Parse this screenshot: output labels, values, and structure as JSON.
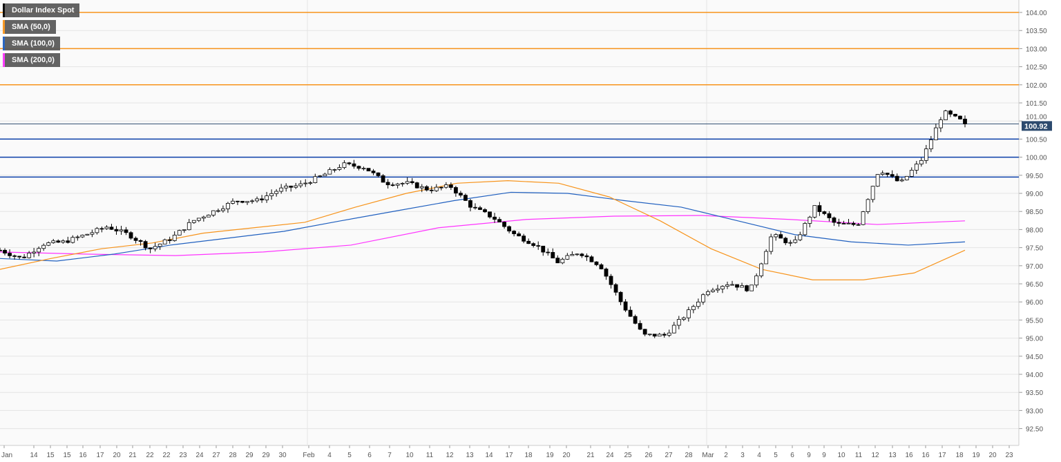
{
  "chart_data": {
    "type": "candlestick",
    "title": "Dollar Index Spot",
    "ylim": [
      92.25,
      104.25
    ],
    "yticks": [
      "104.00",
      "103.50",
      "103.00",
      "102.50",
      "102.00",
      "101.50",
      "101.00",
      "100.50",
      "100.00",
      "99.50",
      "99.00",
      "98.50",
      "98.00",
      "97.50",
      "97.00",
      "96.50",
      "96.00",
      "95.50",
      "95.00",
      "94.50",
      "94.00",
      "93.50",
      "93.00",
      "92.50"
    ],
    "xticks": [
      "Jan",
      "14",
      "15",
      "15",
      "16",
      "17",
      "20",
      "21",
      "22",
      "22",
      "23",
      "24",
      "27",
      "28",
      "29",
      "29",
      "30",
      "Feb",
      "4",
      "5",
      "6",
      "7",
      "10",
      "11",
      "12",
      "13",
      "14",
      "17",
      "18",
      "19",
      "20",
      "21",
      "24",
      "25",
      "26",
      "27",
      "28",
      "Mar",
      "2",
      "3",
      "4",
      "5",
      "6",
      "9",
      "9",
      "10",
      "11",
      "12",
      "13",
      "16",
      "16",
      "17",
      "18",
      "19",
      "20",
      "23"
    ],
    "current_price": "100.92",
    "grid": true,
    "legend_placement": "top-left",
    "legend": [
      {
        "label": "Dollar Index Spot",
        "color": "#000000"
      },
      {
        "label": "SMA (50,0)",
        "color": "#f7931a"
      },
      {
        "label": "SMA (100,0)",
        "color": "#1f5fbf"
      },
      {
        "label": "SMA (200,0)",
        "color": "#ff33ff"
      }
    ],
    "resistance_levels": [
      104.0,
      103.0,
      102.0
    ],
    "support_levels": [
      100.5,
      100.0,
      99.45
    ],
    "price_path": [
      97.43,
      97.2,
      97.6,
      97.66,
      97.86,
      98.08,
      97.86,
      97.47,
      97.76,
      98.24,
      98.52,
      98.8,
      98.8,
      99.1,
      99.23,
      99.48,
      99.8,
      99.72,
      99.28,
      99.28,
      99.1,
      99.2,
      98.62,
      98.33,
      97.86,
      97.57,
      97.1,
      97.38,
      97.0,
      95.95,
      95.08,
      95.08,
      95.66,
      96.33,
      96.52,
      96.33,
      97.86,
      97.57,
      98.62,
      98.14,
      98.14,
      99.67,
      99.28,
      99.95,
      101.25,
      100.95
    ],
    "sma50": [
      96.9,
      97.2,
      97.47,
      97.63,
      97.9,
      98.05,
      98.2,
      98.62,
      99.0,
      99.28,
      99.35,
      99.28,
      98.9,
      98.24,
      97.47,
      96.9,
      96.61,
      96.61,
      96.8,
      97.43
    ],
    "sma100": [
      97.2,
      97.13,
      97.32,
      97.57,
      97.76,
      97.95,
      98.24,
      98.52,
      98.8,
      99.03,
      99.0,
      98.8,
      98.62,
      98.24,
      97.86,
      97.66,
      97.57,
      97.66
    ],
    "sma200": [
      97.38,
      97.32,
      97.28,
      97.38,
      97.57,
      98.05,
      98.28,
      98.37,
      98.39,
      98.28,
      98.14,
      98.24
    ]
  },
  "colors": {
    "resistance": "#f7931a",
    "support": "#0a3ea8",
    "current": "#2c4a6e",
    "bull": "#ffffff",
    "bear": "#000000",
    "grid": "#e4e4e4"
  }
}
